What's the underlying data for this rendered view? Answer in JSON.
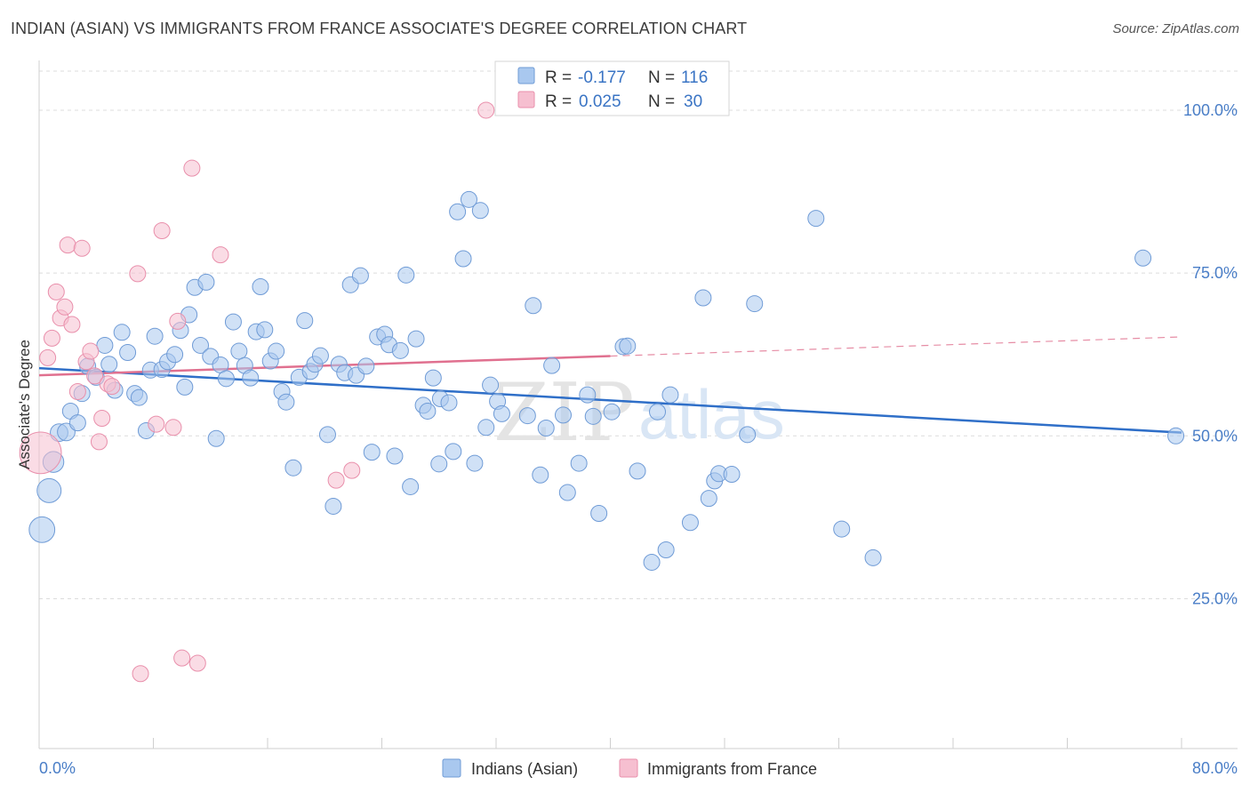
{
  "chart_data": {
    "type": "scatter",
    "title": "INDIAN (ASIAN) VS IMMIGRANTS FROM FRANCE ASSOCIATE'S DEGREE CORRELATION CHART",
    "source": "Source: ZipAtlas.com",
    "ylabel": "Associate's Degree",
    "xlabel": "",
    "xlim": [
      0,
      80
    ],
    "ylim": [
      2,
      106
    ],
    "x_tick_labels": [
      "0.0%",
      "80.0%"
    ],
    "y_ticks": [
      25,
      50,
      75,
      100
    ],
    "y_tick_labels": [
      "25.0%",
      "50.0%",
      "75.0%",
      "100.0%"
    ],
    "watermark": [
      "ZIP",
      "atlas"
    ],
    "colors": {
      "series1_fill": "#a9c8ef",
      "series1_stroke": "#6f9bd6",
      "series1_line": "#2f6fc8",
      "series2_fill": "#f6bfd0",
      "series2_stroke": "#e98fab",
      "series2_line": "#e0708f",
      "grid": "#dcdcdc",
      "axis_label": "#4a7ec7"
    },
    "legend_stats": [
      {
        "r_label": "R =",
        "r_value": "-0.177",
        "n_label": "N =",
        "n_value": "116"
      },
      {
        "r_label": "R =",
        "r_value": "0.025",
        "n_label": "N =",
        "n_value": "30"
      }
    ],
    "series": [
      {
        "name": "Indians (Asian)",
        "trend": {
          "x": [
            0,
            80
          ],
          "y": [
            60.4,
            50.5
          ],
          "solid_to": 80
        },
        "points": [
          [
            0.2,
            35.6,
            1.6
          ],
          [
            0.7,
            41.6,
            1.5
          ],
          [
            1.0,
            46.0,
            1.3
          ],
          [
            1.4,
            50.5,
            1.1
          ],
          [
            1.9,
            50.6,
            1.1
          ],
          [
            2.2,
            53.8,
            1.0
          ],
          [
            2.7,
            52.0,
            1.0
          ],
          [
            3.0,
            56.5,
            1.0
          ],
          [
            3.4,
            60.7,
            1.0
          ],
          [
            4.0,
            59.0,
            1.0
          ],
          [
            4.6,
            63.9,
            1.0
          ],
          [
            4.9,
            61.0,
            1.0
          ],
          [
            5.3,
            57.0,
            1.0
          ],
          [
            5.8,
            65.9,
            1.0
          ],
          [
            6.2,
            62.8,
            1.0
          ],
          [
            6.7,
            56.5,
            1.0
          ],
          [
            7.0,
            55.9,
            1.0
          ],
          [
            7.5,
            50.8,
            1.0
          ],
          [
            7.8,
            60.1,
            1.0
          ],
          [
            8.1,
            65.3,
            1.0
          ],
          [
            8.6,
            60.2,
            1.0
          ],
          [
            9.0,
            61.4,
            1.0
          ],
          [
            9.5,
            62.5,
            1.0
          ],
          [
            9.9,
            66.2,
            1.0
          ],
          [
            10.2,
            57.5,
            1.0
          ],
          [
            10.5,
            68.6,
            1.0
          ],
          [
            10.9,
            72.8,
            1.0
          ],
          [
            11.3,
            63.9,
            1.0
          ],
          [
            11.7,
            73.6,
            1.0
          ],
          [
            12.0,
            62.2,
            1.0
          ],
          [
            12.4,
            49.6,
            1.0
          ],
          [
            12.7,
            60.9,
            1.0
          ],
          [
            13.1,
            58.8,
            1.0
          ],
          [
            13.6,
            67.5,
            1.0
          ],
          [
            14.0,
            63.0,
            1.0
          ],
          [
            14.4,
            60.8,
            1.0
          ],
          [
            14.8,
            58.9,
            1.0
          ],
          [
            15.2,
            66.0,
            1.0
          ],
          [
            15.5,
            72.9,
            1.0
          ],
          [
            15.8,
            66.3,
            1.0
          ],
          [
            16.2,
            61.5,
            1.0
          ],
          [
            16.6,
            63.0,
            1.0
          ],
          [
            17.0,
            56.8,
            1.0
          ],
          [
            17.3,
            55.2,
            1.0
          ],
          [
            17.8,
            45.1,
            1.0
          ],
          [
            18.2,
            59.0,
            1.0
          ],
          [
            18.6,
            67.7,
            1.0
          ],
          [
            19.0,
            59.9,
            1.0
          ],
          [
            19.3,
            61.0,
            1.0
          ],
          [
            19.7,
            62.3,
            1.0
          ],
          [
            20.2,
            50.2,
            1.0
          ],
          [
            20.6,
            39.2,
            1.0
          ],
          [
            21.0,
            61.0,
            1.0
          ],
          [
            21.4,
            59.7,
            1.0
          ],
          [
            21.8,
            73.2,
            1.0
          ],
          [
            22.2,
            59.3,
            1.0
          ],
          [
            22.5,
            74.6,
            1.0
          ],
          [
            22.9,
            60.7,
            1.0
          ],
          [
            23.3,
            47.5,
            1.0
          ],
          [
            23.7,
            65.2,
            1.0
          ],
          [
            24.2,
            65.6,
            1.0
          ],
          [
            24.5,
            64.0,
            1.0
          ],
          [
            24.9,
            46.9,
            1.0
          ],
          [
            25.3,
            63.1,
            1.0
          ],
          [
            25.7,
            74.7,
            1.0
          ],
          [
            26.0,
            42.2,
            1.0
          ],
          [
            26.4,
            64.9,
            1.0
          ],
          [
            26.9,
            54.7,
            1.0
          ],
          [
            27.2,
            53.8,
            1.0
          ],
          [
            27.6,
            58.9,
            1.0
          ],
          [
            28.0,
            45.7,
            1.0
          ],
          [
            28.1,
            55.7,
            1.0
          ],
          [
            28.7,
            55.1,
            1.0
          ],
          [
            29.0,
            47.6,
            1.0
          ],
          [
            29.3,
            84.4,
            1.0
          ],
          [
            29.7,
            77.2,
            1.0
          ],
          [
            30.1,
            86.3,
            1.0
          ],
          [
            30.5,
            45.8,
            1.0
          ],
          [
            30.9,
            84.6,
            1.0
          ],
          [
            31.3,
            51.3,
            1.0
          ],
          [
            31.6,
            57.8,
            1.0
          ],
          [
            32.1,
            55.3,
            1.0
          ],
          [
            32.4,
            53.4,
            1.0
          ],
          [
            34.2,
            53.1,
            1.0
          ],
          [
            34.6,
            70.0,
            1.0
          ],
          [
            35.1,
            44.0,
            1.0
          ],
          [
            35.5,
            51.2,
            1.0
          ],
          [
            35.9,
            60.8,
            1.0
          ],
          [
            36.7,
            53.2,
            1.0
          ],
          [
            37.0,
            41.3,
            1.0
          ],
          [
            37.8,
            45.8,
            1.0
          ],
          [
            38.4,
            56.3,
            1.0
          ],
          [
            38.8,
            53.0,
            1.0
          ],
          [
            39.2,
            38.1,
            1.0
          ],
          [
            40.1,
            53.7,
            1.0
          ],
          [
            40.9,
            63.7,
            1.0
          ],
          [
            41.2,
            63.8,
            1.0
          ],
          [
            41.9,
            44.6,
            1.0
          ],
          [
            42.9,
            30.6,
            1.0
          ],
          [
            43.3,
            53.7,
            1.0
          ],
          [
            43.9,
            32.5,
            1.0
          ],
          [
            44.2,
            56.3,
            1.0
          ],
          [
            45.6,
            36.7,
            1.0
          ],
          [
            46.5,
            71.2,
            1.0
          ],
          [
            46.9,
            40.4,
            1.0
          ],
          [
            47.3,
            43.1,
            1.0
          ],
          [
            47.6,
            44.2,
            1.0
          ],
          [
            48.5,
            44.1,
            1.0
          ],
          [
            49.6,
            50.2,
            1.0
          ],
          [
            50.1,
            70.3,
            1.0
          ],
          [
            54.4,
            83.4,
            1.0
          ],
          [
            56.2,
            35.7,
            1.0
          ],
          [
            58.4,
            31.3,
            1.0
          ],
          [
            77.3,
            77.3,
            1.0
          ],
          [
            79.6,
            50.0,
            1.0
          ]
        ]
      },
      {
        "name": "Immigrants from France",
        "trend": {
          "x": [
            0,
            80
          ],
          "y": [
            59.3,
            65.2
          ],
          "solid_to": 40
        },
        "points": [
          [
            0.1,
            47.4,
            2.6
          ],
          [
            0.6,
            62.0,
            1.0
          ],
          [
            0.9,
            65.0,
            1.0
          ],
          [
            1.2,
            72.1,
            1.0
          ],
          [
            1.5,
            68.1,
            1.0
          ],
          [
            1.8,
            69.8,
            1.0
          ],
          [
            2.0,
            79.3,
            1.0
          ],
          [
            2.3,
            67.1,
            1.0
          ],
          [
            2.7,
            56.8,
            1.0
          ],
          [
            3.0,
            78.8,
            1.0
          ],
          [
            3.3,
            61.4,
            1.0
          ],
          [
            3.6,
            63.0,
            1.0
          ],
          [
            3.9,
            59.2,
            1.0
          ],
          [
            4.2,
            49.1,
            1.0
          ],
          [
            4.4,
            52.7,
            1.0
          ],
          [
            4.8,
            58.0,
            1.0
          ],
          [
            5.1,
            57.6,
            1.0
          ],
          [
            6.9,
            74.9,
            1.0
          ],
          [
            7.1,
            13.5,
            1.0
          ],
          [
            8.2,
            51.8,
            1.0
          ],
          [
            8.6,
            81.5,
            1.0
          ],
          [
            9.4,
            51.3,
            1.0
          ],
          [
            9.7,
            67.6,
            1.0
          ],
          [
            10.0,
            15.9,
            1.0
          ],
          [
            10.7,
            91.1,
            1.0
          ],
          [
            11.1,
            15.1,
            1.0
          ],
          [
            12.7,
            77.8,
            1.0
          ],
          [
            20.8,
            43.2,
            1.0
          ],
          [
            21.9,
            44.7,
            1.0
          ],
          [
            31.3,
            100.0,
            1.0
          ]
        ]
      }
    ]
  }
}
